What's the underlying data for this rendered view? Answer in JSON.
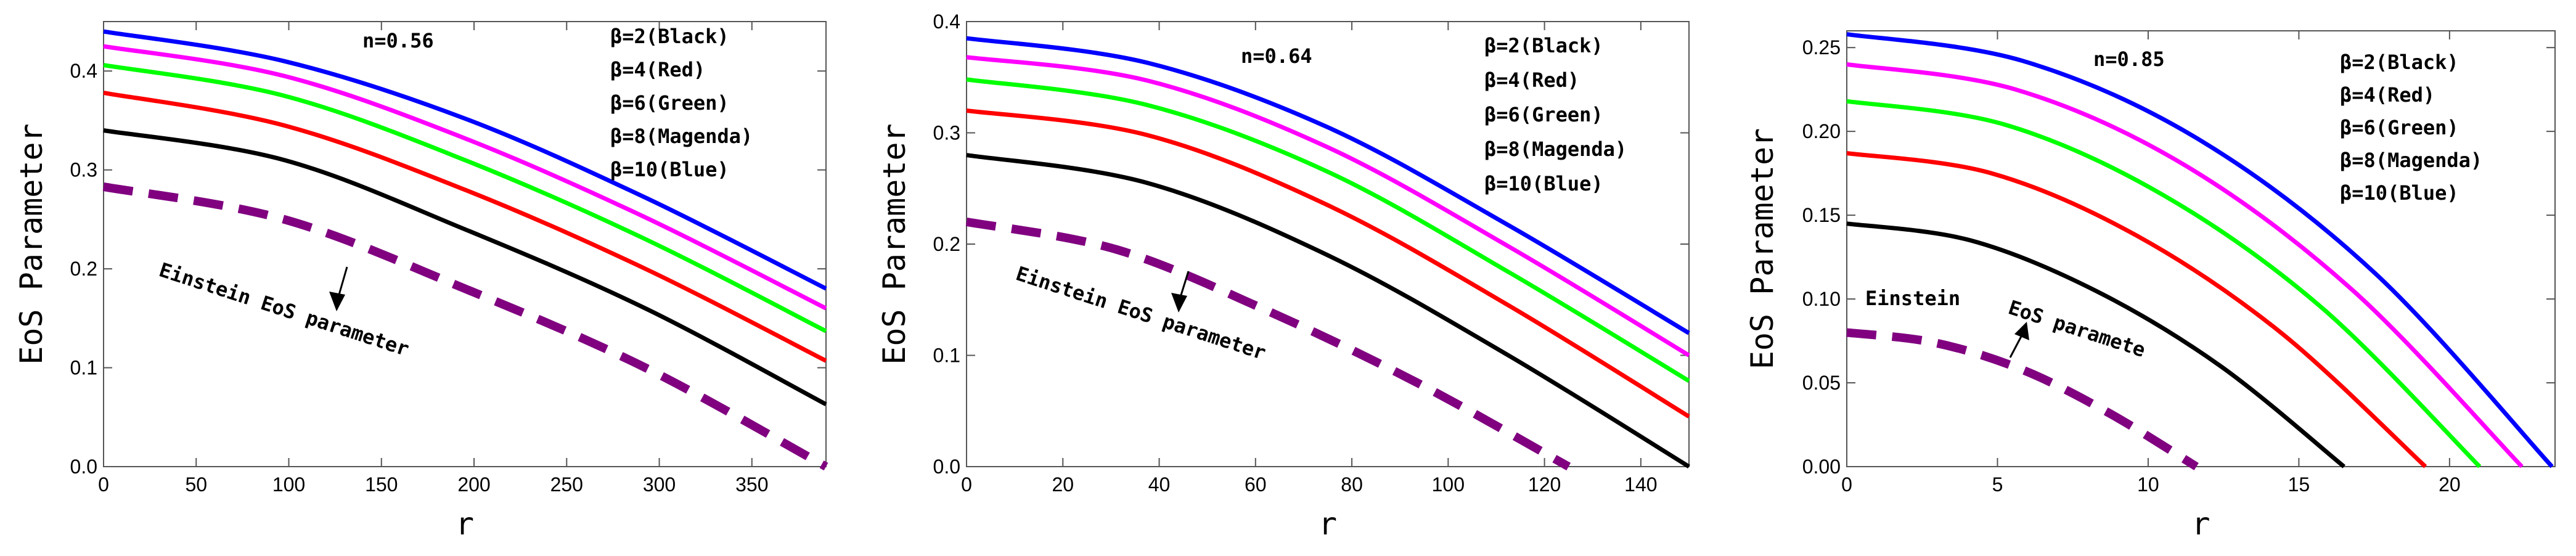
{
  "figure": {
    "description_label": "EoS parameter vs r for three n values"
  },
  "legend_colors": {
    "Black": "#000000",
    "Red": "#ff0000",
    "Green": "#00ff00",
    "Magenda": "#ff00ff",
    "Blue": "#0000ff",
    "Einstein": "#800080"
  },
  "chart_data": [
    {
      "type": "line",
      "n_label": "n=0.56",
      "xlabel": "r",
      "ylabel": "EoS Parameter",
      "xlim": [
        0,
        390
      ],
      "ylim": [
        0,
        0.45
      ],
      "xticks": [
        "0",
        "50",
        "100",
        "150",
        "200",
        "250",
        "300",
        "350"
      ],
      "yticks": [
        "0.0",
        "0.1",
        "0.2",
        "0.3",
        "0.4"
      ],
      "legend": [
        "β=2(Black)",
        "β=4(Red)",
        "β=6(Green)",
        "β=8(Magenda)",
        "β=10(Blue)"
      ],
      "annotation": "Einstein EoS parameter",
      "series": [
        {
          "name": "β=2",
          "color": "#000000",
          "dash": false,
          "x": [
            0,
            97.5,
            195,
            292.5,
            390
          ],
          "values": [
            0.34,
            0.31,
            0.24,
            0.16,
            0.063
          ]
        },
        {
          "name": "β=4",
          "color": "#ff0000",
          "dash": false,
          "x": [
            0,
            97.5,
            195,
            292.5,
            390
          ],
          "values": [
            0.378,
            0.345,
            0.28,
            0.2,
            0.107
          ]
        },
        {
          "name": "β=6",
          "color": "#00ff00",
          "dash": false,
          "x": [
            0,
            97.5,
            195,
            292.5,
            390
          ],
          "values": [
            0.406,
            0.375,
            0.31,
            0.23,
            0.137
          ]
        },
        {
          "name": "β=8",
          "color": "#ff00ff",
          "dash": false,
          "x": [
            0,
            97.5,
            195,
            292.5,
            390
          ],
          "values": [
            0.425,
            0.395,
            0.332,
            0.252,
            0.16
          ]
        },
        {
          "name": "β=10",
          "color": "#0000ff",
          "dash": false,
          "x": [
            0,
            97.5,
            195,
            292.5,
            390
          ],
          "values": [
            0.44,
            0.41,
            0.352,
            0.272,
            0.18
          ]
        },
        {
          "name": "Einstein",
          "color": "#800080",
          "dash": true,
          "x": [
            0,
            97.5,
            195,
            292.5,
            390
          ],
          "values": [
            0.283,
            0.25,
            0.18,
            0.1,
            0.0
          ]
        }
      ]
    },
    {
      "type": "line",
      "n_label": "n=0.64",
      "xlabel": "r",
      "ylabel": "EoS Parameter",
      "xlim": [
        0,
        150
      ],
      "ylim": [
        0,
        0.4
      ],
      "xticks": [
        "0",
        "20",
        "40",
        "60",
        "80",
        "100",
        "120",
        "140"
      ],
      "yticks": [
        "0.0",
        "0.1",
        "0.2",
        "0.3",
        "0.4"
      ],
      "legend": [
        "β=2(Black)",
        "β=4(Red)",
        "β=6(Green)",
        "β=8(Magenda)",
        "β=10(Blue)"
      ],
      "annotation": "Einstein EoS parameter",
      "series": [
        {
          "name": "β=2",
          "color": "#000000",
          "dash": false,
          "x": [
            0,
            37.5,
            75,
            112.5,
            150
          ],
          "values": [
            0.28,
            0.255,
            0.19,
            0.1,
            0.0
          ]
        },
        {
          "name": "β=4",
          "color": "#ff0000",
          "dash": false,
          "x": [
            0,
            37.5,
            75,
            112.5,
            150
          ],
          "values": [
            0.32,
            0.298,
            0.235,
            0.145,
            0.045
          ]
        },
        {
          "name": "β=6",
          "color": "#00ff00",
          "dash": false,
          "x": [
            0,
            37.5,
            75,
            112.5,
            150
          ],
          "values": [
            0.348,
            0.325,
            0.265,
            0.175,
            0.077
          ]
        },
        {
          "name": "β=8",
          "color": "#ff00ff",
          "dash": false,
          "x": [
            0,
            37.5,
            75,
            112.5,
            150
          ],
          "values": [
            0.368,
            0.347,
            0.287,
            0.198,
            0.1
          ]
        },
        {
          "name": "β=10",
          "color": "#0000ff",
          "dash": false,
          "x": [
            0,
            37.5,
            75,
            112.5,
            150
          ],
          "values": [
            0.385,
            0.363,
            0.305,
            0.217,
            0.12
          ]
        },
        {
          "name": "Einstein",
          "color": "#800080",
          "dash": true,
          "x": [
            0,
            31.25,
            62.5,
            93.75,
            125
          ],
          "values": [
            0.22,
            0.195,
            0.14,
            0.075,
            0.0
          ]
        }
      ]
    },
    {
      "type": "line",
      "n_label": "n=0.85",
      "xlabel": "r",
      "ylabel": "EoS Parameter",
      "xlim": [
        0,
        23.5
      ],
      "ylim": [
        0,
        0.26
      ],
      "xticks": [
        "0",
        "5",
        "10",
        "15",
        "20"
      ],
      "yticks": [
        "0.00",
        "0.05",
        "0.10",
        "0.15",
        "0.20",
        "0.25"
      ],
      "legend": [
        "β=2(Black)",
        "β=4(Red)",
        "β=6(Green)",
        "β=8(Magenda)",
        "β=10(Blue)"
      ],
      "annotation_parts": [
        "Einstein",
        "EoS paramete"
      ],
      "series": [
        {
          "name": "β=2",
          "color": "#000000",
          "dash": false,
          "x": [
            0,
            4.1,
            8.25,
            12.4,
            16.5
          ],
          "values": [
            0.145,
            0.135,
            0.105,
            0.06,
            0.0
          ]
        },
        {
          "name": "β=4",
          "color": "#ff0000",
          "dash": false,
          "x": [
            0,
            4.8,
            9.6,
            14.4,
            19.2
          ],
          "values": [
            0.187,
            0.175,
            0.138,
            0.08,
            0.0
          ]
        },
        {
          "name": "β=6",
          "color": "#00ff00",
          "dash": false,
          "x": [
            0,
            5.25,
            10.5,
            15.75,
            21.0
          ],
          "values": [
            0.218,
            0.204,
            0.162,
            0.095,
            0.0
          ]
        },
        {
          "name": "β=8",
          "color": "#ff00ff",
          "dash": false,
          "x": [
            0,
            5.6,
            11.2,
            16.8,
            22.4
          ],
          "values": [
            0.24,
            0.225,
            0.18,
            0.105,
            0.0
          ]
        },
        {
          "name": "β=10",
          "color": "#0000ff",
          "dash": false,
          "x": [
            0,
            5.85,
            11.7,
            17.55,
            23.4
          ],
          "values": [
            0.258,
            0.242,
            0.195,
            0.115,
            0.0
          ]
        },
        {
          "name": "Einstein",
          "color": "#800080",
          "dash": true,
          "x": [
            0,
            2.9,
            5.8,
            8.7,
            11.6
          ],
          "values": [
            0.08,
            0.074,
            0.058,
            0.032,
            0.0
          ]
        }
      ]
    }
  ]
}
